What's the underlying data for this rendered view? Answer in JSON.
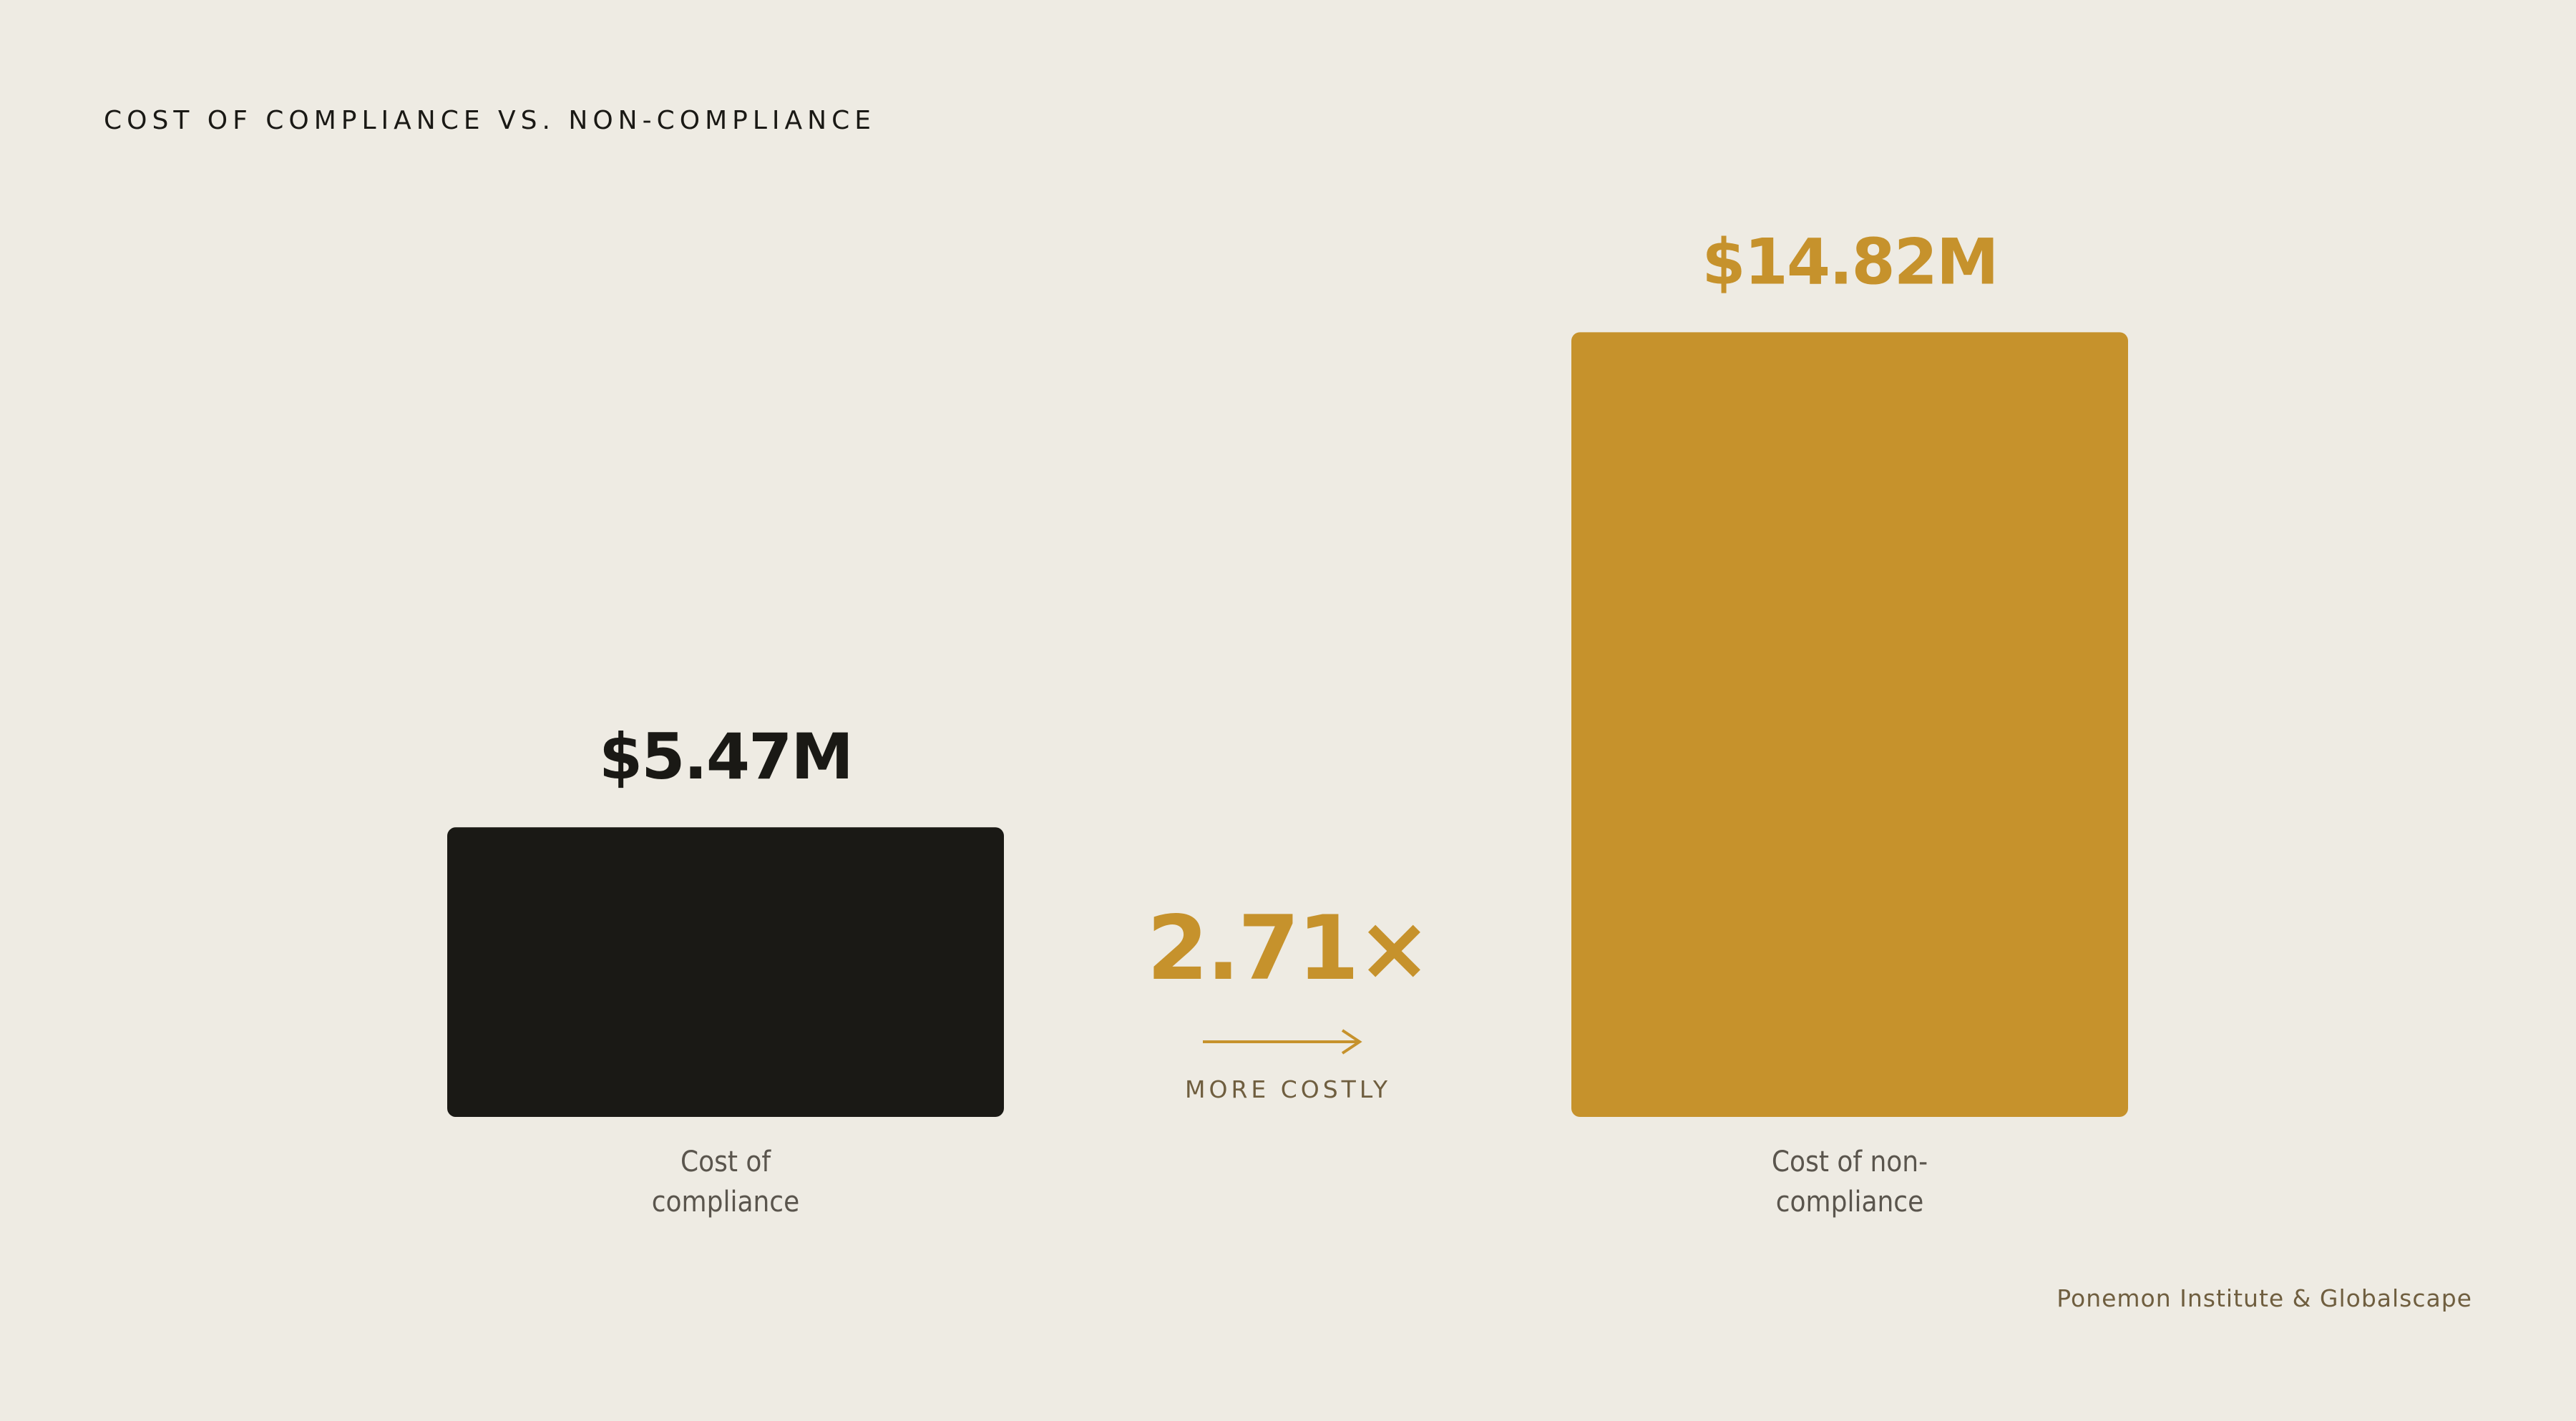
{
  "chart_data": {
    "type": "bar",
    "title": "COST OF COMPLIANCE VS. NON-COMPLIANCE",
    "categories": [
      "Cost of compliance",
      "Cost of non-compliance"
    ],
    "values": [
      5.47,
      14.82
    ],
    "value_labels": [
      "$5.47M",
      "$14.82M"
    ],
    "colors": [
      "#1a1915",
      "#c6922c"
    ],
    "annotation": "2.71×",
    "annotation_note": "MORE COSTLY",
    "source": "Ponemon Institute & Globalscape"
  }
}
